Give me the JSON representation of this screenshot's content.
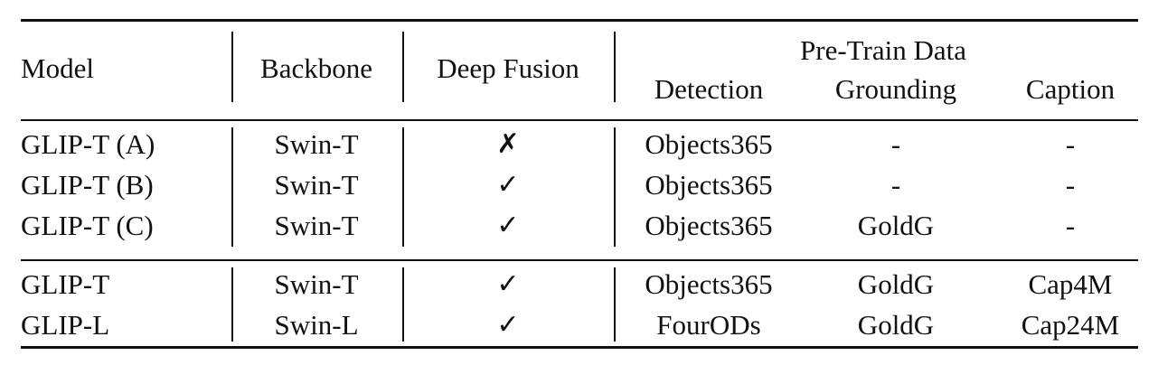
{
  "table": {
    "headers": {
      "model": "Model",
      "backbone": "Backbone",
      "deep_fusion": "Deep Fusion",
      "pretrain_group": "Pre-Train Data",
      "detection": "Detection",
      "grounding": "Grounding",
      "caption": "Caption"
    },
    "rows": [
      {
        "model": "GLIP-T (A)",
        "backbone": "Swin-T",
        "deep_fusion": "✗",
        "detection": "Objects365",
        "grounding": "-",
        "caption": "-"
      },
      {
        "model": "GLIP-T (B)",
        "backbone": "Swin-T",
        "deep_fusion": "✓",
        "detection": "Objects365",
        "grounding": "-",
        "caption": "-"
      },
      {
        "model": "GLIP-T (C)",
        "backbone": "Swin-T",
        "deep_fusion": "✓",
        "detection": "Objects365",
        "grounding": "GoldG",
        "caption": "-"
      },
      {
        "model": "GLIP-T",
        "backbone": "Swin-T",
        "deep_fusion": "✓",
        "detection": "Objects365",
        "grounding": "GoldG",
        "caption": "Cap4M"
      },
      {
        "model": "GLIP-L",
        "backbone": "Swin-L",
        "deep_fusion": "✓",
        "detection": "FourODs",
        "grounding": "GoldG",
        "caption": "Cap24M"
      }
    ]
  }
}
